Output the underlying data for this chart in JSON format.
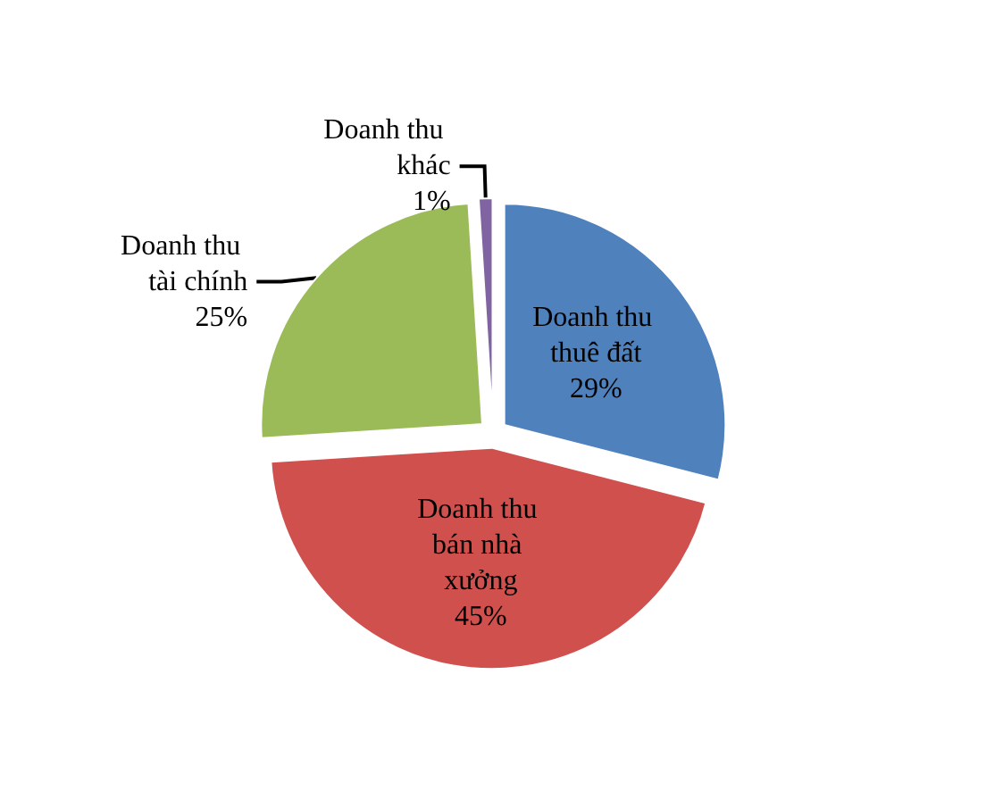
{
  "chart_data": {
    "type": "pie",
    "categories": [
      "Doanh thu thuê đất",
      "Doanh thu bán nhà xưởng",
      "Doanh thu tài chính",
      "Doanh thu khác"
    ],
    "values": [
      29,
      45,
      25,
      1
    ],
    "value_labels": [
      "29%",
      "45%",
      "25%",
      "1%"
    ],
    "colors": [
      "#4f81bd",
      "#d0504d",
      "#9bbb59",
      "#8064a2"
    ],
    "legend": false
  }
}
